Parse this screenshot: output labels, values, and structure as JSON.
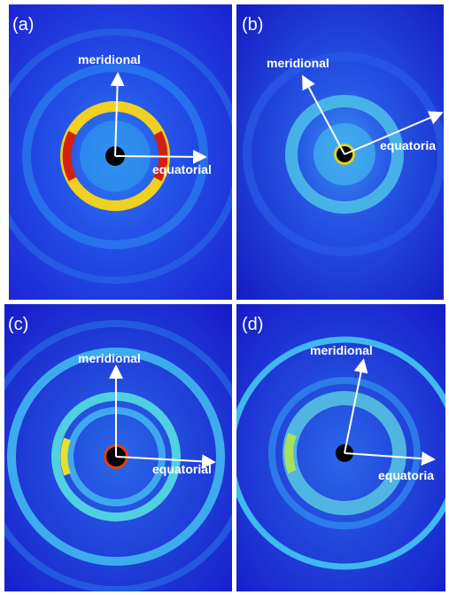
{
  "panels": [
    {
      "label": "(a)",
      "meridional": "meridional",
      "equatorial": "equatorial"
    },
    {
      "label": "(b)",
      "meridional": "meridional",
      "equatorial": "equatoria"
    },
    {
      "label": "(c)",
      "meridional": "meridional",
      "equatorial": "equatorial"
    },
    {
      "label": "(d)",
      "meridional": "meridional",
      "equatorial": "equatoria"
    }
  ]
}
